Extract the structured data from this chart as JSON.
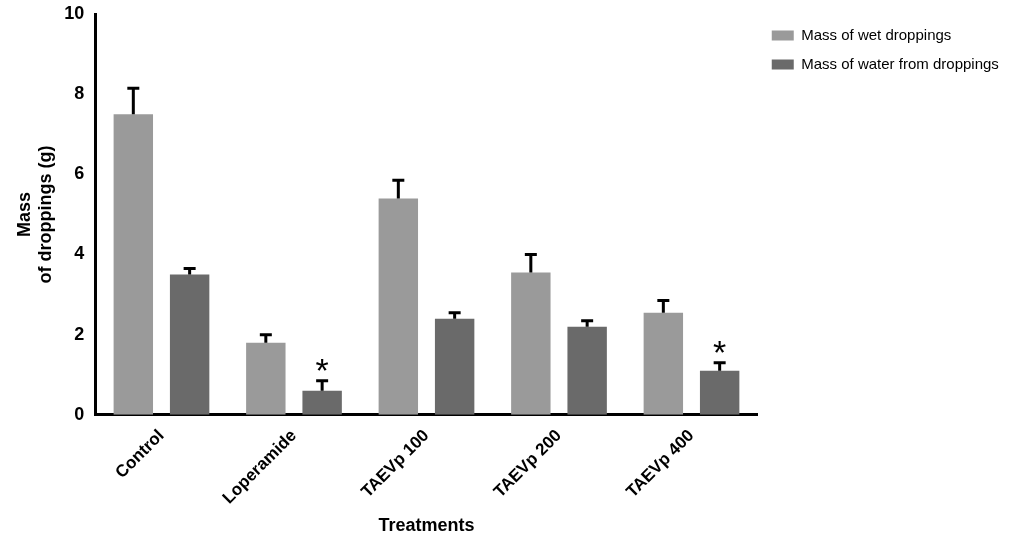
{
  "chart_data": {
    "type": "bar",
    "xlabel": "Treatments",
    "ylabel": "Mass\nof droppings (g)",
    "categories": [
      "Control",
      "Loperamide",
      "TAEVp 100",
      "TAEVp 200",
      "TAEVp 400"
    ],
    "series": [
      {
        "name": "Mass of wet droppings",
        "color": "#9a9a9a",
        "values": [
          7.5,
          1.8,
          5.4,
          3.55,
          2.55
        ],
        "errors": [
          0.65,
          0.2,
          0.45,
          0.45,
          0.3
        ]
      },
      {
        "name": "Mass of water from droppings",
        "color": "#6a6a6a",
        "values": [
          3.5,
          0.6,
          2.4,
          2.2,
          1.1
        ],
        "errors": [
          0.15,
          0.25,
          0.15,
          0.15,
          0.2
        ]
      }
    ],
    "ylim": [
      0,
      10
    ],
    "yticks": [
      0,
      2,
      4,
      6,
      8,
      10
    ],
    "grid": false,
    "legend": "top right",
    "annotations": [
      "*",
      "*"
    ]
  }
}
